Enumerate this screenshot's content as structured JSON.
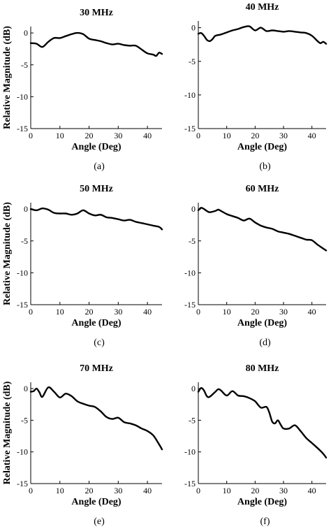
{
  "chart_data": [
    {
      "type": "line",
      "title": "30 MHz",
      "caption": "(a)",
      "xlabel": "Angle (Deg)",
      "ylabel": "Relative Magnitude (dB)",
      "xlim": [
        0,
        45
      ],
      "ylim": [
        -15,
        1
      ],
      "xticks": [
        "0",
        "10",
        "20",
        "30",
        "40"
      ],
      "yticks": [
        "0",
        "-5",
        "-10",
        "-15"
      ],
      "grid": false,
      "series": [
        {
          "x": [
            0,
            2,
            4,
            6,
            8,
            10,
            12,
            14,
            16,
            18,
            20,
            22,
            24,
            26,
            28,
            30,
            32,
            34,
            36,
            38,
            40,
            42,
            43,
            44,
            45
          ],
          "y": [
            -1.6,
            -1.7,
            -2.2,
            -1.4,
            -0.8,
            -0.8,
            -0.5,
            -0.2,
            0.0,
            -0.2,
            -0.9,
            -1.1,
            -1.3,
            -1.6,
            -1.8,
            -1.7,
            -1.9,
            -2.0,
            -2.0,
            -2.6,
            -3.2,
            -3.4,
            -3.6,
            -3.1,
            -3.3
          ]
        }
      ]
    },
    {
      "type": "line",
      "title": "40 MHz",
      "caption": "(b)",
      "xlabel": "Angle (Deg)",
      "ylabel": "",
      "xlim": [
        0,
        45
      ],
      "ylim": [
        -15,
        1
      ],
      "xticks": [
        "0",
        "10",
        "20",
        "30",
        "40"
      ],
      "yticks": [
        "0",
        "-5",
        "-10",
        "-15"
      ],
      "grid": false,
      "series": [
        {
          "x": [
            0,
            1,
            2,
            3,
            4,
            5,
            6,
            8,
            10,
            12,
            14,
            16,
            18,
            20,
            22,
            24,
            26,
            28,
            30,
            32,
            34,
            36,
            38,
            40,
            42,
            43,
            44,
            45
          ],
          "y": [
            -0.9,
            -0.8,
            -1.2,
            -1.8,
            -2.0,
            -1.7,
            -1.2,
            -1.0,
            -0.7,
            -0.4,
            -0.2,
            0.1,
            0.2,
            -0.4,
            0.0,
            -0.5,
            -0.4,
            -0.5,
            -0.6,
            -0.5,
            -0.6,
            -0.7,
            -0.8,
            -1.2,
            -2.0,
            -2.3,
            -2.1,
            -2.4
          ]
        }
      ]
    },
    {
      "type": "line",
      "title": "50 MHz",
      "caption": "(c)",
      "xlabel": "Angle (Deg)",
      "ylabel": "Relative Magnitude (dB)",
      "xlim": [
        0,
        45
      ],
      "ylim": [
        -15,
        1
      ],
      "xticks": [
        "0",
        "10",
        "20",
        "30",
        "40"
      ],
      "yticks": [
        "0",
        "-5",
        "-10",
        "-15"
      ],
      "grid": false,
      "series": [
        {
          "x": [
            0,
            2,
            4,
            6,
            8,
            10,
            12,
            14,
            16,
            18,
            20,
            22,
            24,
            26,
            28,
            30,
            32,
            34,
            36,
            38,
            40,
            42,
            44,
            45
          ],
          "y": [
            0.0,
            -0.2,
            0.1,
            -0.1,
            -0.6,
            -0.7,
            -0.7,
            -0.9,
            -0.7,
            -0.2,
            -0.7,
            -1.0,
            -0.9,
            -1.3,
            -1.4,
            -1.6,
            -1.8,
            -1.7,
            -2.0,
            -2.2,
            -2.4,
            -2.6,
            -2.8,
            -3.2
          ]
        }
      ]
    },
    {
      "type": "line",
      "title": "60 MHz",
      "caption": "(d)",
      "xlabel": "Angle (Deg)",
      "ylabel": "",
      "xlim": [
        0,
        45
      ],
      "ylim": [
        -15,
        1
      ],
      "xticks": [
        "0",
        "10",
        "20",
        "30",
        "40"
      ],
      "yticks": [
        "0",
        "-5",
        "-10",
        "-15"
      ],
      "grid": false,
      "series": [
        {
          "x": [
            0,
            1,
            2,
            3,
            4,
            6,
            7,
            8,
            10,
            12,
            14,
            16,
            18,
            20,
            22,
            24,
            26,
            28,
            30,
            32,
            34,
            36,
            38,
            40,
            42,
            44,
            45
          ],
          "y": [
            -0.2,
            0.2,
            0.0,
            -0.3,
            -0.5,
            -0.3,
            -0.1,
            -0.3,
            -0.8,
            -1.1,
            -1.4,
            -1.8,
            -1.5,
            -2.1,
            -2.6,
            -2.9,
            -3.1,
            -3.5,
            -3.7,
            -3.9,
            -4.2,
            -4.5,
            -4.8,
            -4.9,
            -5.6,
            -6.2,
            -6.5
          ]
        }
      ]
    },
    {
      "type": "line",
      "title": "70 MHz",
      "caption": "(e)",
      "xlabel": "Angle (Deg)",
      "ylabel": "Relative Magnitude (dB)",
      "xlim": [
        0,
        45
      ],
      "ylim": [
        -15,
        1
      ],
      "xticks": [
        "0",
        "10",
        "20",
        "30",
        "40"
      ],
      "yticks": [
        "0",
        "-5",
        "-10",
        "-15"
      ],
      "grid": false,
      "series": [
        {
          "x": [
            0,
            1,
            2,
            3,
            4,
            6,
            8,
            10,
            12,
            14,
            16,
            18,
            20,
            22,
            24,
            26,
            28,
            30,
            32,
            34,
            36,
            38,
            40,
            42,
            44,
            45
          ],
          "y": [
            -0.5,
            -0.4,
            0.0,
            -0.6,
            -1.3,
            0.2,
            -0.5,
            -1.4,
            -0.8,
            -1.2,
            -2.0,
            -2.4,
            -2.7,
            -2.9,
            -3.6,
            -4.5,
            -4.8,
            -4.6,
            -5.3,
            -5.5,
            -5.8,
            -6.3,
            -6.7,
            -7.4,
            -8.8,
            -9.6
          ]
        }
      ]
    },
    {
      "type": "line",
      "title": "80 MHz",
      "caption": "(f)",
      "xlabel": "Angle (Deg)",
      "ylabel": "",
      "xlim": [
        0,
        45
      ],
      "ylim": [
        -15,
        1
      ],
      "xticks": [
        "0",
        "10",
        "20",
        "30",
        "40"
      ],
      "yticks": [
        "0",
        "-5",
        "-10",
        "-15"
      ],
      "grid": false,
      "series": [
        {
          "x": [
            0,
            1,
            2,
            3,
            4,
            6,
            7,
            8,
            10,
            12,
            14,
            16,
            18,
            20,
            22,
            24,
            25,
            26,
            27,
            28,
            29,
            30,
            32,
            34,
            36,
            38,
            40,
            42,
            44,
            45
          ],
          "y": [
            -0.5,
            0.1,
            -0.3,
            -1.2,
            -1.3,
            -0.5,
            -0.1,
            -0.3,
            -1.1,
            -0.4,
            -1.1,
            -1.2,
            -1.5,
            -2.0,
            -3.0,
            -2.9,
            -3.8,
            -5.2,
            -5.5,
            -5.0,
            -5.7,
            -6.3,
            -6.3,
            -5.8,
            -6.7,
            -7.8,
            -8.6,
            -9.4,
            -10.3,
            -10.9
          ]
        }
      ]
    }
  ]
}
